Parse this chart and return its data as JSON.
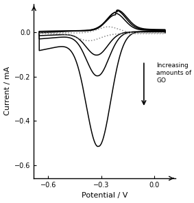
{
  "xlim": [
    -0.68,
    0.12
  ],
  "ylim": [
    -0.66,
    0.13
  ],
  "xticks": [
    -0.6,
    -0.3,
    0.0
  ],
  "yticks": [
    0.0,
    -0.2,
    -0.4,
    -0.6
  ],
  "xlabel": "Potential / V",
  "ylabel": "Current / mA",
  "annotation_text": "Increasing\namounts of\nGO",
  "line_color": "#000000",
  "dot_color": "#888888",
  "background": "white"
}
